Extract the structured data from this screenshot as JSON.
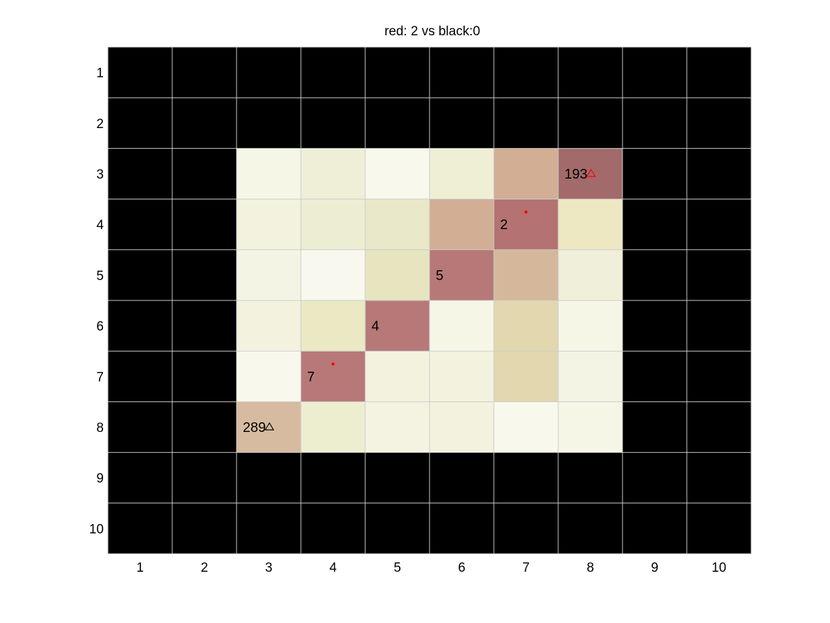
{
  "chart_data": {
    "type": "heatmap",
    "title": "red: 2 vs black:0",
    "xlabel": "",
    "ylabel": "",
    "x_ticks": [
      "1",
      "2",
      "3",
      "4",
      "5",
      "6",
      "7",
      "8",
      "9",
      "10"
    ],
    "y_ticks": [
      "1",
      "2",
      "3",
      "4",
      "5",
      "6",
      "7",
      "8",
      "9",
      "10"
    ],
    "grid": true,
    "grid_color": "#cccccc",
    "background_color": "#000000",
    "cells": [
      {
        "row": 3,
        "col": 3,
        "color": "#f6f6e7"
      },
      {
        "row": 3,
        "col": 4,
        "color": "#efefd8"
      },
      {
        "row": 3,
        "col": 5,
        "color": "#f8f8ec"
      },
      {
        "row": 3,
        "col": 6,
        "color": "#efefd6"
      },
      {
        "row": 3,
        "col": 7,
        "color": "#d2ae94"
      },
      {
        "row": 3,
        "col": 8,
        "color": "#a26a6a"
      },
      {
        "row": 4,
        "col": 3,
        "color": "#f3f2de"
      },
      {
        "row": 4,
        "col": 4,
        "color": "#ededd4"
      },
      {
        "row": 4,
        "col": 5,
        "color": "#e9e9c9"
      },
      {
        "row": 4,
        "col": 6,
        "color": "#d2ae94"
      },
      {
        "row": 4,
        "col": 7,
        "color": "#b47272"
      },
      {
        "row": 4,
        "col": 8,
        "color": "#eee8c2"
      },
      {
        "row": 5,
        "col": 3,
        "color": "#f4f4e4"
      },
      {
        "row": 5,
        "col": 4,
        "color": "#f8f8ee"
      },
      {
        "row": 5,
        "col": 5,
        "color": "#e6e5bf"
      },
      {
        "row": 5,
        "col": 6,
        "color": "#b77878"
      },
      {
        "row": 5,
        "col": 7,
        "color": "#d5b89c"
      },
      {
        "row": 5,
        "col": 8,
        "color": "#f0efda"
      },
      {
        "row": 6,
        "col": 3,
        "color": "#f3f2de"
      },
      {
        "row": 6,
        "col": 4,
        "color": "#eae9c3"
      },
      {
        "row": 6,
        "col": 5,
        "color": "#b77878"
      },
      {
        "row": 6,
        "col": 6,
        "color": "#f6f6e7"
      },
      {
        "row": 6,
        "col": 7,
        "color": "#e2d7ae"
      },
      {
        "row": 6,
        "col": 8,
        "color": "#f6f6e7"
      },
      {
        "row": 7,
        "col": 3,
        "color": "#f8f8ec"
      },
      {
        "row": 7,
        "col": 4,
        "color": "#b77878"
      },
      {
        "row": 7,
        "col": 5,
        "color": "#f3f2de"
      },
      {
        "row": 7,
        "col": 6,
        "color": "#f3f2de"
      },
      {
        "row": 7,
        "col": 7,
        "color": "#e2d7ae"
      },
      {
        "row": 7,
        "col": 8,
        "color": "#f4f4e4"
      },
      {
        "row": 8,
        "col": 3,
        "color": "#d7bba0"
      },
      {
        "row": 8,
        "col": 4,
        "color": "#ededd0"
      },
      {
        "row": 8,
        "col": 5,
        "color": "#f4f3e2"
      },
      {
        "row": 8,
        "col": 6,
        "color": "#f3f2de"
      },
      {
        "row": 8,
        "col": 7,
        "color": "#f8f8ec"
      },
      {
        "row": 8,
        "col": 8,
        "color": "#f6f6e7"
      }
    ],
    "annotations": [
      {
        "row": 3,
        "col": 8,
        "text": "193"
      },
      {
        "row": 4,
        "col": 7,
        "text": "2"
      },
      {
        "row": 5,
        "col": 6,
        "text": "5"
      },
      {
        "row": 6,
        "col": 5,
        "text": "4"
      },
      {
        "row": 7,
        "col": 4,
        "text": "7"
      },
      {
        "row": 8,
        "col": 3,
        "text": "289"
      }
    ],
    "markers": [
      {
        "row": 3,
        "col": 8,
        "shape": "triangle",
        "color": "#ff0000"
      },
      {
        "row": 8,
        "col": 3,
        "shape": "triangle",
        "color": "#000000"
      },
      {
        "row": 4,
        "col": 7,
        "shape": "dot",
        "color": "#ff0000"
      },
      {
        "row": 7,
        "col": 4,
        "shape": "dot",
        "color": "#ff0000"
      }
    ]
  }
}
